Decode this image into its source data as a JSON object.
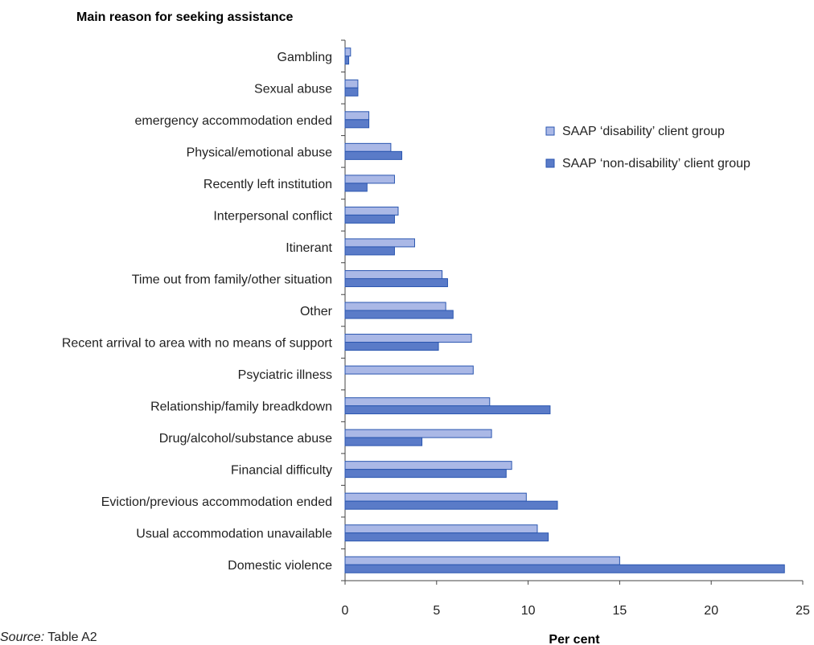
{
  "chart_data": {
    "type": "bar",
    "orientation": "horizontal",
    "title": "Main reason for seeking assistance",
    "xlabel": "Per cent",
    "ylabel": "",
    "xlim": [
      0,
      25
    ],
    "xticks": [
      0,
      5,
      10,
      15,
      20,
      25
    ],
    "grid": false,
    "legend_position": "right",
    "categories": [
      "Gambling",
      "Sexual abuse",
      "emergency accommodation ended",
      "Physical/emotional abuse",
      "Recently left institution",
      "Interpersonal conflict",
      "Itinerant",
      "Time out from family/other situation",
      "Other",
      "Recent arrival to area with no means of support",
      "Psyciatric illness",
      "Relationship/family breadkdown",
      "Drug/alcohol/substance abuse",
      "Financial difficulty",
      "Eviction/previous accommodation ended",
      "Usual accommodation unavailable",
      "Domestic violence"
    ],
    "series": [
      {
        "name": "SAAP ‘disability’ client group",
        "color": "#aab8e6",
        "values": [
          0.3,
          0.7,
          1.3,
          2.5,
          2.7,
          2.9,
          3.8,
          5.3,
          5.5,
          6.9,
          7.0,
          7.9,
          8.0,
          9.1,
          9.9,
          10.5,
          15.0
        ]
      },
      {
        "name": "SAAP ‘non-disability’ client group",
        "color": "#5a7bc8",
        "values": [
          0.2,
          0.7,
          1.3,
          3.1,
          1.2,
          2.7,
          2.7,
          5.6,
          5.9,
          5.1,
          0,
          11.2,
          4.2,
          8.8,
          11.6,
          11.1,
          24.0
        ]
      }
    ]
  },
  "source": {
    "prefix": "Source:",
    "text": "Table A2"
  }
}
